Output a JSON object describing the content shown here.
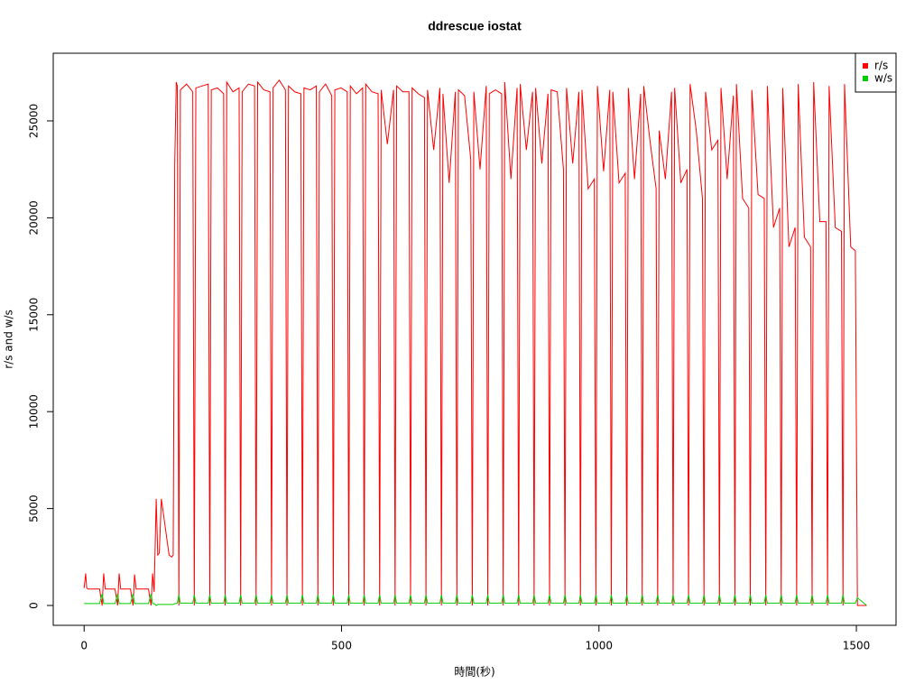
{
  "chart_data": {
    "type": "line",
    "title": "ddrescue iostat",
    "xlabel": "時間(秒)",
    "ylabel": "r/s and w/s",
    "x": [
      0,
      3,
      5,
      8,
      30,
      35,
      38,
      41,
      60,
      65,
      68,
      71,
      90,
      95,
      98,
      101,
      125,
      130,
      133,
      136,
      140,
      143,
      146,
      150,
      165,
      170,
      173,
      176,
      179,
      181,
      184,
      187,
      199,
      211,
      214,
      217,
      229,
      241,
      244,
      247,
      259,
      271,
      274,
      277,
      289,
      301,
      304,
      307,
      319,
      331,
      334,
      337,
      349,
      361,
      364,
      367,
      379,
      391,
      394,
      397,
      409,
      421,
      424,
      427,
      439,
      451,
      454,
      457,
      469,
      481,
      484,
      487,
      499,
      511,
      514,
      517,
      529,
      541,
      544,
      547,
      559,
      571,
      574,
      577,
      589,
      601,
      604,
      607,
      619,
      631,
      634,
      637,
      649,
      661,
      664,
      667,
      679,
      691,
      694,
      697,
      709,
      721,
      724,
      727,
      739,
      751,
      754,
      757,
      769,
      781,
      784,
      787,
      799,
      811,
      814,
      817,
      829,
      841,
      844,
      847,
      859,
      871,
      874,
      877,
      889,
      901,
      904,
      907,
      919,
      931,
      934,
      937,
      949,
      961,
      964,
      967,
      979,
      991,
      994,
      997,
      1009,
      1021,
      1024,
      1027,
      1039,
      1051,
      1054,
      1057,
      1069,
      1081,
      1084,
      1087,
      1099,
      1111,
      1114,
      1117,
      1129,
      1141,
      1144,
      1147,
      1159,
      1171,
      1174,
      1177,
      1189,
      1201,
      1204,
      1207,
      1219,
      1231,
      1234,
      1237,
      1249,
      1261,
      1264,
      1267,
      1279,
      1291,
      1294,
      1297,
      1309,
      1321,
      1324,
      1327,
      1339,
      1351,
      1354,
      1357,
      1369,
      1381,
      1384,
      1387,
      1399,
      1411,
      1414,
      1417,
      1429,
      1441,
      1444,
      1447,
      1459,
      1471,
      1474,
      1477,
      1489,
      1498,
      1502,
      1520
    ],
    "series": [
      {
        "name": "r/s",
        "color": "#ff0000",
        "values": [
          900,
          1650,
          900,
          850,
          850,
          0,
          1650,
          850,
          850,
          0,
          1650,
          850,
          850,
          0,
          1600,
          850,
          850,
          0,
          1650,
          700,
          5500,
          2600,
          2700,
          5500,
          2600,
          2500,
          2600,
          22800,
          27000,
          26800,
          0,
          26600,
          26900,
          26500,
          0,
          26700,
          26800,
          26900,
          0,
          26600,
          26700,
          26400,
          0,
          27000,
          26500,
          26700,
          0,
          26500,
          26900,
          26800,
          0,
          27000,
          26600,
          26500,
          0,
          26700,
          27100,
          26600,
          0,
          26800,
          26500,
          26400,
          0,
          26700,
          26600,
          26800,
          0,
          26500,
          26900,
          26300,
          0,
          26600,
          26700,
          26500,
          0,
          26800,
          26400,
          26700,
          0,
          26900,
          26500,
          26400,
          0,
          26600,
          23800,
          26600,
          0,
          26800,
          26500,
          26500,
          0,
          26700,
          26400,
          26200,
          0,
          26600,
          23500,
          26700,
          0,
          26400,
          21800,
          26500,
          0,
          26600,
          26300,
          23000,
          0,
          26500,
          22500,
          26800,
          0,
          26400,
          26600,
          26400,
          0,
          27000,
          22000,
          26700,
          0,
          26900,
          23500,
          26500,
          0,
          26700,
          22800,
          26400,
          0,
          26600,
          26500,
          22500,
          0,
          26700,
          22800,
          26500,
          0,
          26600,
          21500,
          22000,
          0,
          26800,
          22400,
          26600,
          0,
          26500,
          21800,
          22300,
          0,
          26700,
          22000,
          26400,
          0,
          26800,
          24000,
          21500,
          0,
          24500,
          22000,
          26500,
          0,
          26700,
          21800,
          22500,
          0,
          26900,
          24500,
          21000,
          0,
          26500,
          23500,
          24000,
          0,
          26700,
          22000,
          26300,
          0,
          26900,
          21000,
          20500,
          0,
          26600,
          21200,
          21000,
          0,
          26800,
          19500,
          20500,
          0,
          26700,
          18500,
          19500,
          0,
          26900,
          19000,
          18500,
          0,
          27000,
          19800,
          19800,
          0,
          26800,
          19500,
          19300,
          0,
          26900,
          18500,
          18300,
          0,
          0
        ]
      },
      {
        "name": "w/s",
        "color": "#00cd00",
        "values": [
          100,
          100,
          100,
          100,
          100,
          600,
          100,
          100,
          100,
          600,
          100,
          100,
          100,
          600,
          100,
          100,
          100,
          600,
          100,
          100,
          0,
          50,
          50,
          50,
          50,
          50,
          50,
          100,
          100,
          120,
          550,
          120,
          120,
          120,
          550,
          120,
          120,
          120,
          550,
          120,
          120,
          120,
          550,
          120,
          120,
          120,
          550,
          120,
          120,
          120,
          550,
          120,
          120,
          120,
          550,
          120,
          120,
          120,
          550,
          120,
          120,
          120,
          550,
          120,
          120,
          120,
          550,
          120,
          120,
          120,
          550,
          120,
          120,
          120,
          550,
          120,
          120,
          120,
          550,
          120,
          120,
          120,
          550,
          120,
          120,
          120,
          550,
          120,
          120,
          120,
          550,
          120,
          120,
          120,
          550,
          120,
          120,
          120,
          550,
          120,
          120,
          120,
          550,
          120,
          120,
          120,
          550,
          120,
          120,
          120,
          550,
          120,
          120,
          120,
          550,
          120,
          120,
          120,
          550,
          120,
          120,
          120,
          550,
          120,
          120,
          120,
          550,
          120,
          120,
          120,
          550,
          120,
          120,
          120,
          550,
          120,
          120,
          120,
          550,
          120,
          120,
          120,
          550,
          120,
          120,
          120,
          550,
          120,
          120,
          120,
          550,
          120,
          120,
          120,
          550,
          120,
          120,
          120,
          550,
          120,
          120,
          120,
          550,
          120,
          120,
          120,
          550,
          120,
          120,
          120,
          550,
          120,
          120,
          120,
          550,
          120,
          120,
          120,
          550,
          120,
          120,
          120,
          550,
          120,
          120,
          120,
          550,
          120,
          120,
          120,
          550,
          120,
          120,
          120,
          550,
          120,
          120,
          120,
          550,
          120,
          120,
          120,
          550,
          120,
          120,
          120,
          400,
          0
        ]
      }
    ],
    "xlim": [
      -60,
      1577
    ],
    "xticks": [
      0,
      500,
      1000,
      1500
    ],
    "ylim": [
      -1024,
      28490
    ],
    "yticks": [
      0,
      5000,
      10000,
      15000,
      20000,
      25000
    ],
    "legend": "top-right"
  }
}
